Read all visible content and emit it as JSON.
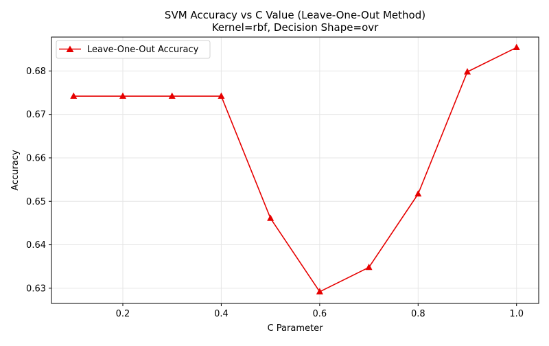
{
  "chart_data": {
    "type": "line",
    "title": "SVM Accuracy vs C Value (Leave-One-Out Method)",
    "subtitle": "Kernel=rbf, Decision Shape=ovr",
    "xlabel": "C Parameter",
    "ylabel": "Accuracy",
    "xlim": [
      0.055,
      1.045
    ],
    "ylim": [
      0.6265,
      0.6878
    ],
    "xticks": [
      0.2,
      0.4,
      0.6,
      0.8,
      1.0
    ],
    "xtick_labels": [
      "0.2",
      "0.4",
      "0.6",
      "0.8",
      "1.0"
    ],
    "yticks": [
      0.63,
      0.64,
      0.65,
      0.66,
      0.67,
      0.68
    ],
    "ytick_labels": [
      "0.63",
      "0.64",
      "0.65",
      "0.66",
      "0.67",
      "0.68"
    ],
    "grid": true,
    "legend_position": "top-left",
    "series": [
      {
        "name": "Leave-One-Out Accuracy",
        "color": "#e60000",
        "marker": "triangle-up",
        "x": [
          0.1,
          0.2,
          0.3,
          0.4,
          0.5,
          0.6,
          0.7,
          0.8,
          0.9,
          1.0
        ],
        "values": [
          0.6742,
          0.6742,
          0.6742,
          0.6742,
          0.6461,
          0.6292,
          0.6348,
          0.6517,
          0.6798,
          0.6854
        ]
      }
    ]
  }
}
